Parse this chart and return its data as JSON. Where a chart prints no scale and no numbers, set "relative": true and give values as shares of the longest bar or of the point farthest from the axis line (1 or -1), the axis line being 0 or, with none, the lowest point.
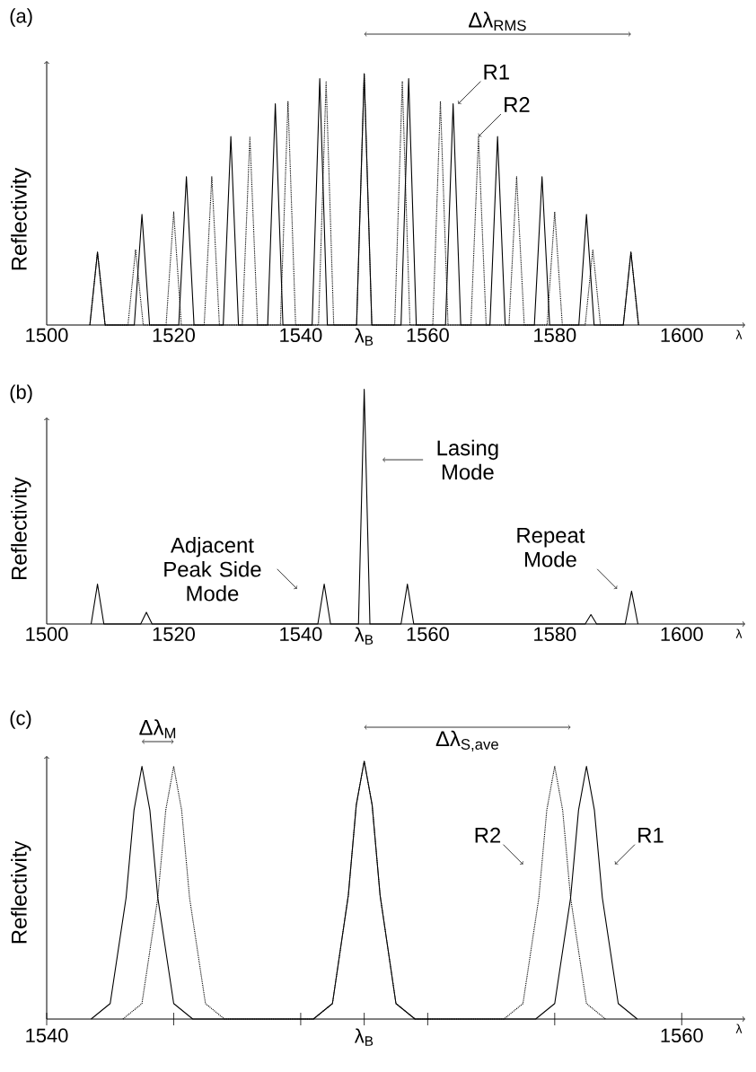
{
  "chart_data": [
    {
      "type": "line",
      "title": "(a)",
      "xlabel": "λ",
      "ylabel": "Reflectivity",
      "relative": true,
      "xlim": [
        1500,
        1610
      ],
      "xticks": [
        1500,
        1520,
        1540,
        {
          "value": 1550,
          "label": "λ$_{B}$"
        },
        1560,
        1580,
        1600
      ],
      "series": [
        {
          "color": "#000000",
          "line_style": "solid",
          "x": [
            1506.8,
            1508,
            1509.2,
            1513.8,
            1515,
            1516.2,
            1520.8,
            1522,
            1523.2,
            1527.8,
            1529,
            1530.2,
            1534.8,
            1536,
            1537.2,
            1541.8,
            1543,
            1544.2,
            1548.8,
            1550,
            1551.2,
            1555.8,
            1557,
            1558.2,
            1562.8,
            1564,
            1565.2,
            1569.8,
            1571,
            1572.2,
            1576.8,
            1578,
            1579.2,
            1583.8,
            1585,
            1586.2,
            1590.8,
            1592,
            1593.2
          ],
          "values": [
            0,
            0.29,
            0,
            0,
            0.44,
            0,
            0,
            0.59,
            0,
            0,
            0.75,
            0,
            0,
            0.88,
            0,
            0,
            0.98,
            0,
            0,
            1,
            0,
            0,
            0.98,
            0,
            0,
            0.88,
            0,
            0,
            0.75,
            0,
            0,
            0.59,
            0,
            0,
            0.44,
            0,
            0,
            0.29,
            0
          ]
        },
        {
          "color": "#000000",
          "line_style": "dotted",
          "x": [
            1506.8,
            1508,
            1509.2,
            1512.8,
            1514,
            1515.2,
            1518.8,
            1520,
            1521.2,
            1524.8,
            1526,
            1527.2,
            1530.8,
            1532,
            1533.2,
            1536.8,
            1538,
            1539.2,
            1542.8,
            1544,
            1545.2,
            1548.8,
            1550,
            1551.2,
            1554.8,
            1556,
            1557.2,
            1560.8,
            1562,
            1563.2,
            1566.8,
            1568,
            1569.2,
            1572.8,
            1574,
            1575.2,
            1578.8,
            1580,
            1581.2,
            1584.8,
            1586,
            1587.2,
            1590.8,
            1592,
            1593.2
          ],
          "values": [
            0,
            0.29,
            0,
            0,
            0.3,
            0,
            0,
            0.45,
            0,
            0,
            0.59,
            0,
            0,
            0.75,
            0,
            0,
            0.89,
            0,
            0,
            0.97,
            0,
            0,
            1,
            0,
            0,
            0.97,
            0,
            0,
            0.89,
            0,
            0,
            0.75,
            0,
            0,
            0.59,
            0,
            0,
            0.45,
            0,
            0,
            0.3,
            0,
            0,
            0.29,
            0
          ]
        }
      ],
      "annotations": [
        {
          "text": "R1",
          "x": 1564.8,
          "y": 0.88
        },
        {
          "text": "R2",
          "x": 1568,
          "y": 0.75
        },
        "Δλ$_{RMS}$"
      ]
    },
    {
      "type": "line",
      "title": "(b)",
      "xlabel": "λ",
      "ylabel": "Reflectivity",
      "relative": true,
      "xlim": [
        1500,
        1610
      ],
      "xticks": [
        1500,
        1520,
        1540,
        {
          "value": 1550,
          "label": "λ$_{B}$"
        },
        1560,
        1580,
        1600
      ],
      "series": [
        {
          "color": "#000000",
          "line_style": "solid",
          "x": [
            1507,
            1508,
            1509,
            1514.8,
            1515.7,
            1516.6,
            1542.7,
            1543.7,
            1544.7,
            1549.1,
            1550,
            1550.9,
            1555.8,
            1556.8,
            1557.8,
            1584.8,
            1585.7,
            1586.6,
            1591.1,
            1592.1,
            1593.1
          ],
          "values": [
            0,
            0.17,
            0,
            0,
            0.05,
            0,
            0,
            0.17,
            0,
            0,
            1,
            0,
            0,
            0.17,
            0,
            0,
            0.04,
            0,
            0,
            0.14,
            0
          ]
        }
      ],
      "annotations": [
        {
          "text": "Lasing Mode",
          "x": 1552.9,
          "y": 0.7
        },
        {
          "text": "Adjacent Peak Side Mode",
          "x": 1539.4,
          "y": 0.15
        },
        {
          "text": "Repeat Mode",
          "x": 1589.8,
          "y": 0.15
        }
      ]
    },
    {
      "type": "line",
      "title": "(c)",
      "xlabel": "λ",
      "ylabel": "Reflectivity",
      "relative": true,
      "xlim": [
        1540,
        1562
      ],
      "xticks": [
        1540,
        {
          "value": 1544,
          "label": null
        },
        {
          "value": 1548,
          "label": null
        },
        {
          "value": 1550,
          "label": "λ$_{B}$"
        },
        {
          "value": 1552,
          "label": null
        },
        {
          "value": 1556,
          "label": null
        },
        1560
      ],
      "series": [
        {
          "color": "#000000",
          "line_style": "solid",
          "x": [
            1541.4,
            1542,
            1542.5,
            1542.75,
            1543,
            1543.25,
            1543.5,
            1544,
            1544.6,
            1548.4,
            1549,
            1549.5,
            1549.75,
            1550,
            1550.25,
            1550.5,
            1551,
            1551.6,
            1555.4,
            1556,
            1556.5,
            1556.75,
            1557,
            1557.25,
            1557.5,
            1558,
            1558.6
          ],
          "values": [
            0,
            0.06,
            0.47,
            0.81,
            0.98,
            0.81,
            0.47,
            0.06,
            0,
            0,
            0.06,
            0.48,
            0.83,
            1,
            0.83,
            0.48,
            0.06,
            0,
            0,
            0.06,
            0.47,
            0.81,
            0.98,
            0.81,
            0.47,
            0.06,
            0
          ]
        },
        {
          "color": "#000000",
          "line_style": "dotted",
          "x": [
            1542.4,
            1543,
            1543.5,
            1543.75,
            1544,
            1544.25,
            1544.5,
            1545,
            1545.6,
            1548.4,
            1549,
            1549.5,
            1549.75,
            1550,
            1550.25,
            1550.5,
            1551,
            1551.6,
            1554.4,
            1555,
            1555.5,
            1555.75,
            1556,
            1556.25,
            1556.5,
            1557,
            1557.6
          ],
          "values": [
            0,
            0.06,
            0.47,
            0.81,
            0.98,
            0.81,
            0.47,
            0.06,
            0,
            0,
            0.06,
            0.48,
            0.83,
            1,
            0.83,
            0.48,
            0.06,
            0,
            0,
            0.06,
            0.47,
            0.81,
            0.98,
            0.81,
            0.47,
            0.06,
            0
          ]
        }
      ],
      "annotations": [
        {
          "text": "R2",
          "x": 1555,
          "y": 0.6
        },
        {
          "text": "R1",
          "x": 1557.9,
          "y": 0.6
        },
        "Δλ$_{M}$",
        "Δλ$_{S,ave}$"
      ]
    }
  ]
}
